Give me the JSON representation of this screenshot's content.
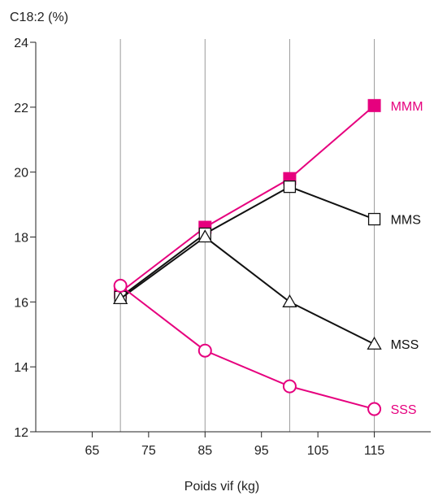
{
  "chart_data": {
    "type": "line",
    "title": "",
    "ylabel": "C18:2 (%)",
    "xlabel": "Poids vif (kg)",
    "xlim": [
      55,
      125
    ],
    "ylim": [
      12,
      24
    ],
    "x_ticks": [
      65,
      75,
      85,
      95,
      105,
      115
    ],
    "y_ticks": [
      12,
      14,
      16,
      18,
      20,
      22,
      24
    ],
    "vertical_gridlines": [
      70,
      85,
      100,
      115
    ],
    "grid": "vertical",
    "series": [
      {
        "name": "MMM",
        "marker": "filled-square",
        "color": "#e6007e",
        "x": [
          70,
          85,
          100,
          115
        ],
        "y": [
          16.3,
          18.3,
          19.8,
          22.05
        ]
      },
      {
        "name": "MMS",
        "marker": "open-square",
        "color": "#111111",
        "x": [
          70,
          85,
          100,
          115
        ],
        "y": [
          16.15,
          18.1,
          19.55,
          18.55
        ]
      },
      {
        "name": "MSS",
        "marker": "open-triangle",
        "color": "#111111",
        "x": [
          70,
          85,
          100,
          115
        ],
        "y": [
          16.1,
          18.0,
          16.0,
          14.7
        ]
      },
      {
        "name": "SSS",
        "marker": "open-circle",
        "color": "#e6007e",
        "x": [
          70,
          85,
          100,
          115
        ],
        "y": [
          16.5,
          14.5,
          13.4,
          12.7
        ]
      }
    ]
  }
}
